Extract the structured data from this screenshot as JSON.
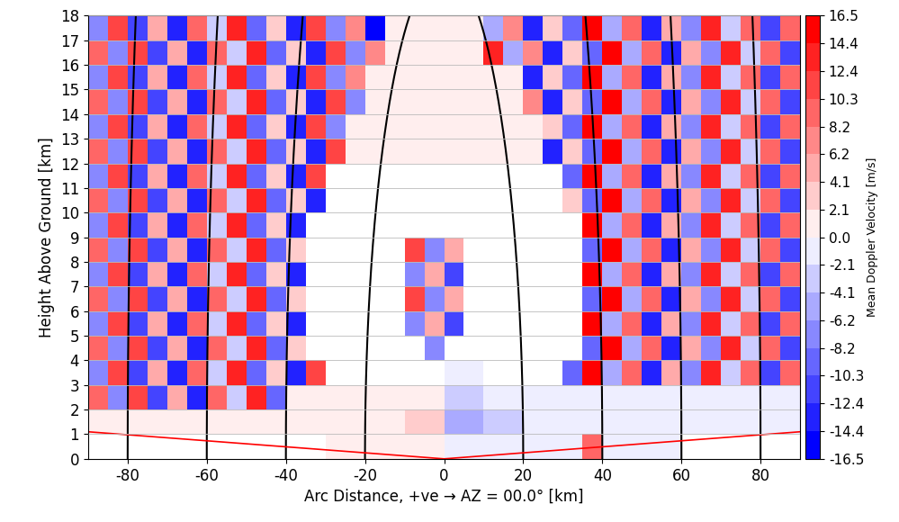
{
  "chart_data": {
    "type": "heatmap",
    "xlabel": "Arc Distance, +ve → AZ = 00.0° [km]",
    "ylabel": "Height Above Ground [km]",
    "xlim": [
      -90,
      90
    ],
    "ylim": [
      0,
      18
    ],
    "xticks": [
      -80,
      -60,
      -40,
      -20,
      0,
      20,
      40,
      60,
      80
    ],
    "yticks": [
      0,
      1,
      2,
      3,
      4,
      5,
      6,
      7,
      8,
      9,
      10,
      11,
      12,
      13,
      14,
      15,
      16,
      17,
      18
    ],
    "grid": "y",
    "x_edges": [
      -90,
      -85,
      -80,
      -75,
      -70,
      -65,
      -60,
      -55,
      -50,
      -45,
      -40,
      -35,
      -30,
      -25,
      -20,
      -15,
      -10,
      -5,
      0,
      5,
      10,
      15,
      20,
      25,
      30,
      35,
      40,
      45,
      50,
      55,
      60,
      65,
      70,
      75,
      80,
      85,
      90
    ],
    "y_edges": [
      0,
      1,
      2,
      3,
      4,
      5,
      6,
      7,
      8,
      9,
      10,
      11,
      12,
      13,
      14,
      15,
      16,
      17,
      18
    ],
    "cells": [
      [
        null,
        null,
        null,
        null,
        null,
        null,
        null,
        null,
        null,
        null,
        null,
        null,
        1.0,
        1.0,
        1.0,
        1.0,
        1.0,
        1.0,
        -1.0,
        -1.0,
        -1.0,
        -1.0,
        -1.0,
        -1.0,
        -1.0,
        9.0,
        -1.0,
        -1.0,
        -1.0,
        -1.0,
        null,
        null,
        null,
        null,
        null,
        null
      ],
      [
        1.5,
        1.5,
        1.5,
        1.5,
        1.5,
        1.5,
        1.5,
        1.5,
        1.5,
        1.5,
        1.5,
        1.5,
        1.5,
        1.5,
        1.5,
        1.5,
        3.0,
        3.0,
        -5.0,
        -5.0,
        -3.0,
        -3.0,
        -2.0,
        -2.0,
        -2.0,
        -2.0,
        -2.0,
        -2.0,
        -2.0,
        -2.0,
        -1.0,
        -1.0,
        -1.0,
        -1.0,
        -1.0,
        -1.0
      ],
      [
        9.5,
        -7.2,
        12.1,
        -10.4,
        4.8,
        -13.6,
        8.3,
        -3.9,
        14.2,
        -9.1,
        1.0,
        1.0,
        1.0,
        1.0,
        1.0,
        1.0,
        1.0,
        1.0,
        -4.0,
        -4.0,
        -1.0,
        -1.0,
        -0.5,
        -0.5,
        -0.5,
        -0.5,
        -0.5,
        -0.5,
        -1.0,
        -1.0,
        -1.0,
        -1.0,
        -1.0,
        -1.0,
        -1.0,
        -1.0
      ],
      [
        -7.2,
        12.1,
        -10.4,
        4.8,
        -13.6,
        8.3,
        -3.9,
        14.2,
        -9.1,
        3.2,
        -12.5,
        10.7,
        null,
        null,
        null,
        null,
        null,
        null,
        -2.0,
        -2.0,
        null,
        null,
        null,
        null,
        -9.8,
        15.2,
        -4.4,
        9.9,
        -12.8,
        4.1,
        -7.7,
        12.9,
        -2.8,
        8.8,
        -10.9,
        9.5
      ],
      [
        9.5,
        -7.2,
        12.1,
        -10.4,
        4.8,
        -13.6,
        8.3,
        -3.9,
        14.2,
        -9.1,
        3.2,
        null,
        null,
        null,
        null,
        null,
        null,
        -8.2,
        null,
        null,
        null,
        null,
        null,
        null,
        null,
        -9.8,
        15.2,
        -4.4,
        9.9,
        -12.8,
        4.1,
        -7.7,
        12.9,
        -2.8,
        8.8,
        -10.9
      ],
      [
        -7.2,
        12.1,
        -10.4,
        4.8,
        -13.6,
        8.3,
        -3.9,
        14.2,
        -9.1,
        3.2,
        -12.5,
        null,
        null,
        null,
        null,
        null,
        -8.2,
        5.5,
        -11.9,
        null,
        null,
        null,
        null,
        null,
        null,
        15.2,
        -4.4,
        9.9,
        -12.8,
        4.1,
        -7.7,
        12.9,
        -2.8,
        8.8,
        -10.9,
        9.5
      ],
      [
        9.5,
        -7.2,
        12.1,
        -10.4,
        4.8,
        -13.6,
        8.3,
        -3.9,
        14.2,
        -9.1,
        3.2,
        null,
        null,
        null,
        null,
        null,
        11.6,
        -8.2,
        5.5,
        null,
        null,
        null,
        null,
        null,
        null,
        -9.8,
        15.2,
        -4.4,
        9.9,
        -12.8,
        4.1,
        -7.7,
        12.9,
        -2.8,
        8.8,
        -10.9
      ],
      [
        -7.2,
        12.1,
        -10.4,
        4.8,
        -13.6,
        8.3,
        -3.9,
        14.2,
        -9.1,
        3.2,
        -12.5,
        null,
        null,
        null,
        null,
        null,
        -8.2,
        5.5,
        -11.9,
        null,
        null,
        null,
        null,
        null,
        null,
        15.2,
        -4.4,
        9.9,
        -12.8,
        4.1,
        -7.7,
        12.9,
        -2.8,
        8.8,
        -10.9,
        9.5
      ],
      [
        9.5,
        -7.2,
        12.1,
        -10.4,
        4.8,
        -13.6,
        8.3,
        -3.9,
        14.2,
        -9.1,
        3.2,
        null,
        null,
        null,
        null,
        null,
        11.6,
        -8.2,
        5.5,
        null,
        null,
        null,
        null,
        null,
        null,
        -9.8,
        15.2,
        -4.4,
        9.9,
        -12.8,
        4.1,
        -7.7,
        12.9,
        -2.8,
        8.8,
        -10.9
      ],
      [
        -7.2,
        12.1,
        -10.4,
        4.8,
        -13.6,
        8.3,
        -3.9,
        14.2,
        -9.1,
        3.2,
        -12.5,
        null,
        null,
        null,
        null,
        null,
        null,
        null,
        null,
        null,
        null,
        null,
        null,
        null,
        null,
        15.2,
        -4.4,
        9.9,
        -12.8,
        4.1,
        -7.7,
        12.9,
        -2.8,
        8.8,
        -10.9,
        9.5
      ],
      [
        9.5,
        -7.2,
        12.1,
        -10.4,
        4.8,
        -13.6,
        8.3,
        -3.9,
        14.2,
        -9.1,
        3.2,
        -12.5,
        null,
        null,
        null,
        null,
        null,
        null,
        null,
        null,
        null,
        null,
        null,
        null,
        2.6,
        -9.8,
        15.2,
        -4.4,
        9.9,
        -12.8,
        4.1,
        -7.7,
        12.9,
        -2.8,
        8.8,
        -10.9
      ],
      [
        -7.2,
        12.1,
        -10.4,
        4.8,
        -13.6,
        8.3,
        -3.9,
        14.2,
        -9.1,
        3.2,
        -12.5,
        10.7,
        null,
        null,
        null,
        null,
        null,
        null,
        null,
        null,
        null,
        null,
        null,
        null,
        -9.8,
        15.2,
        -4.4,
        9.9,
        -12.8,
        4.1,
        -7.7,
        12.9,
        -2.8,
        8.8,
        -10.9,
        9.5
      ],
      [
        9.5,
        -7.2,
        12.1,
        -10.4,
        4.8,
        -13.6,
        8.3,
        -3.9,
        14.2,
        -9.1,
        3.2,
        -12.5,
        10.7,
        1.0,
        1.0,
        1.0,
        1.0,
        1.0,
        1.0,
        1.0,
        1.0,
        1.0,
        1.0,
        -14.1,
        2.6,
        -9.8,
        15.2,
        -4.4,
        9.9,
        -12.8,
        4.1,
        -7.7,
        12.9,
        -2.8,
        8.8,
        -10.9
      ],
      [
        -7.2,
        12.1,
        -10.4,
        4.8,
        -13.6,
        8.3,
        -3.9,
        14.2,
        -9.1,
        3.2,
        -12.5,
        10.7,
        -6.4,
        1.0,
        1.0,
        1.0,
        1.0,
        1.0,
        1.0,
        1.0,
        1.0,
        1.0,
        1.0,
        2.6,
        -9.8,
        15.2,
        -4.4,
        9.9,
        -12.8,
        4.1,
        -7.7,
        12.9,
        -2.8,
        8.8,
        -10.9,
        9.5
      ],
      [
        9.5,
        -7.2,
        12.1,
        -10.4,
        4.8,
        -13.6,
        8.3,
        -3.9,
        14.2,
        -9.1,
        3.2,
        -12.5,
        10.7,
        -6.4,
        1.0,
        1.0,
        1.0,
        1.0,
        1.0,
        1.0,
        1.0,
        1.0,
        6.7,
        -14.1,
        2.6,
        -9.8,
        15.2,
        -4.4,
        9.9,
        -12.8,
        4.1,
        -7.7,
        12.9,
        -2.8,
        8.8,
        -10.9
      ],
      [
        -7.2,
        12.1,
        -10.4,
        4.8,
        -13.6,
        8.3,
        -3.9,
        14.2,
        -9.1,
        3.2,
        -12.5,
        10.7,
        -6.4,
        7.1,
        1.0,
        1.0,
        1.0,
        1.0,
        1.0,
        1.0,
        1.0,
        1.0,
        -14.1,
        2.6,
        -9.8,
        15.2,
        -4.4,
        9.9,
        -12.8,
        4.1,
        -7.7,
        12.9,
        -2.8,
        8.8,
        -10.9,
        9.5
      ],
      [
        9.5,
        -7.2,
        12.1,
        -10.4,
        4.8,
        -13.6,
        8.3,
        -3.9,
        14.2,
        -9.1,
        3.2,
        -12.5,
        10.7,
        -6.4,
        7.1,
        1.0,
        1.0,
        1.0,
        1.0,
        1.0,
        13.4,
        -5.1,
        6.7,
        -14.1,
        2.6,
        -9.8,
        15.2,
        -4.4,
        9.9,
        -12.8,
        4.1,
        -7.7,
        12.9,
        -2.8,
        8.8,
        -10.9
      ],
      [
        -7.2,
        12.1,
        -10.4,
        4.8,
        -13.6,
        8.3,
        -3.9,
        14.2,
        -9.1,
        3.2,
        -12.5,
        10.7,
        -6.4,
        7.1,
        -15.3,
        1.0,
        1.0,
        1.0,
        1.0,
        1.0,
        -5.1,
        6.7,
        -14.1,
        2.6,
        -9.8,
        15.2,
        -4.4,
        9.9,
        -12.8,
        4.1,
        -7.7,
        12.9,
        -2.8,
        8.8,
        -10.9,
        9.5
      ]
    ],
    "colorbar_label": "Mean Doppler Velocity [m/s]",
    "colorbar_range": [
      -16.5,
      16.5
    ],
    "colorbar_ticks": [
      16.5,
      14.4,
      12.4,
      10.3,
      8.2,
      6.2,
      4.1,
      2.1,
      0.0,
      -2.1,
      -4.1,
      -6.2,
      -8.2,
      -10.3,
      -12.4,
      -14.4,
      -16.5
    ],
    "range_rings": [
      20,
      40,
      60,
      80
    ],
    "elevation_line_deg": 0.7
  }
}
